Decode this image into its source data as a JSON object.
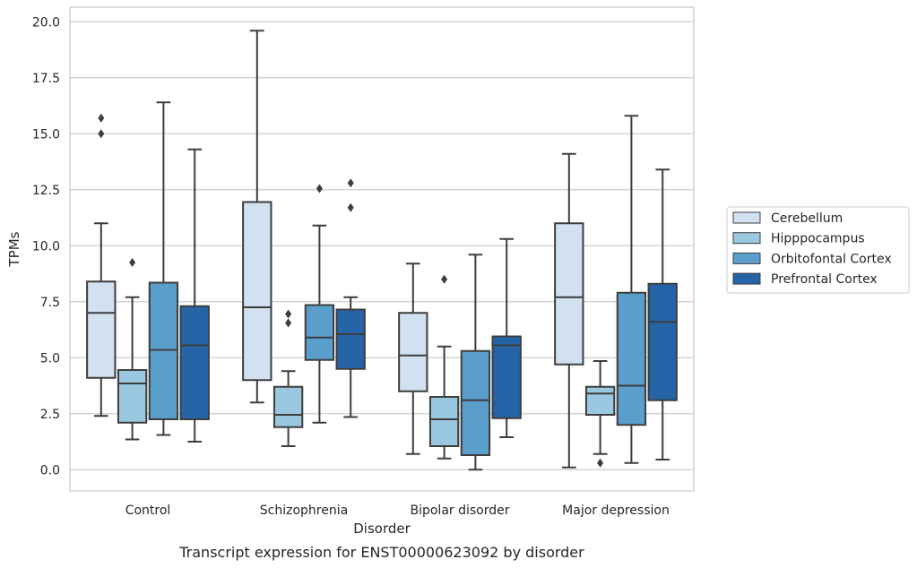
{
  "caption": "Transcript expression for ENST00000623092 by disorder",
  "chart_data": {
    "type": "box",
    "xlabel": "Disorder",
    "ylabel": "TPMs",
    "ylim": [
      -0.95,
      20.65
    ],
    "y_ticks": [
      "0.0",
      "2.5",
      "5.0",
      "7.5",
      "10.0",
      "12.5",
      "15.0",
      "17.5",
      "20.0"
    ],
    "y_tick_values": [
      0,
      2.5,
      5,
      7.5,
      10,
      12.5,
      15,
      17.5,
      20
    ],
    "grid": true,
    "legend_position": "right",
    "categories": [
      "Control",
      "Schizophrenia",
      "Bipolar disorder",
      "Major depression"
    ],
    "series": [
      {
        "name": "Cerebellum",
        "color": "#d1e1f1",
        "boxes": [
          {
            "whislo": 2.4,
            "q1": 4.1,
            "med": 7.0,
            "q3": 8.4,
            "whishi": 11.0,
            "fliers": [
              15.0,
              15.7
            ]
          },
          {
            "whislo": 3.0,
            "q1": 4.0,
            "med": 7.25,
            "q3": 11.95,
            "whishi": 19.6,
            "fliers": []
          },
          {
            "whislo": 0.7,
            "q1": 3.5,
            "med": 5.1,
            "q3": 7.0,
            "whishi": 9.2,
            "fliers": []
          },
          {
            "whislo": 0.1,
            "q1": 4.7,
            "med": 7.7,
            "q3": 11.0,
            "whishi": 14.1,
            "fliers": []
          }
        ]
      },
      {
        "name": "Hipppocampus",
        "color": "#9ac8e0",
        "boxes": [
          {
            "whislo": 1.35,
            "q1": 2.1,
            "med": 3.85,
            "q3": 4.45,
            "whishi": 7.7,
            "fliers": [
              9.25
            ]
          },
          {
            "whislo": 1.05,
            "q1": 1.9,
            "med": 2.45,
            "q3": 3.7,
            "whishi": 4.4,
            "fliers": [
              6.55,
              6.95
            ]
          },
          {
            "whislo": 0.5,
            "q1": 1.05,
            "med": 2.25,
            "q3": 3.25,
            "whishi": 5.5,
            "fliers": [
              8.5
            ]
          },
          {
            "whislo": 0.7,
            "q1": 2.45,
            "med": 3.4,
            "q3": 3.7,
            "whishi": 4.85,
            "fliers": [
              0.3
            ]
          }
        ]
      },
      {
        "name": "Orbitofontal Cortex",
        "color": "#5a9fcc",
        "boxes": [
          {
            "whislo": 1.55,
            "q1": 2.25,
            "med": 5.35,
            "q3": 8.35,
            "whishi": 16.4,
            "fliers": []
          },
          {
            "whislo": 2.1,
            "q1": 4.9,
            "med": 5.9,
            "q3": 7.35,
            "whishi": 10.9,
            "fliers": [
              12.55
            ]
          },
          {
            "whislo": 0.0,
            "q1": 0.65,
            "med": 3.1,
            "q3": 5.3,
            "whishi": 9.6,
            "fliers": []
          },
          {
            "whislo": 0.3,
            "q1": 2.0,
            "med": 3.75,
            "q3": 7.9,
            "whishi": 15.8,
            "fliers": []
          }
        ]
      },
      {
        "name": "Prefrontal Cortex",
        "color": "#2664a8",
        "boxes": [
          {
            "whislo": 1.25,
            "q1": 2.25,
            "med": 5.55,
            "q3": 7.3,
            "whishi": 14.3,
            "fliers": []
          },
          {
            "whislo": 2.35,
            "q1": 4.5,
            "med": 6.05,
            "q3": 7.15,
            "whishi": 7.7,
            "fliers": [
              11.7,
              12.8
            ]
          },
          {
            "whislo": 1.45,
            "q1": 2.3,
            "med": 5.55,
            "q3": 5.95,
            "whishi": 10.3,
            "fliers": []
          },
          {
            "whislo": 0.45,
            "q1": 3.1,
            "med": 6.6,
            "q3": 8.3,
            "whishi": 13.4,
            "fliers": []
          }
        ]
      }
    ]
  }
}
